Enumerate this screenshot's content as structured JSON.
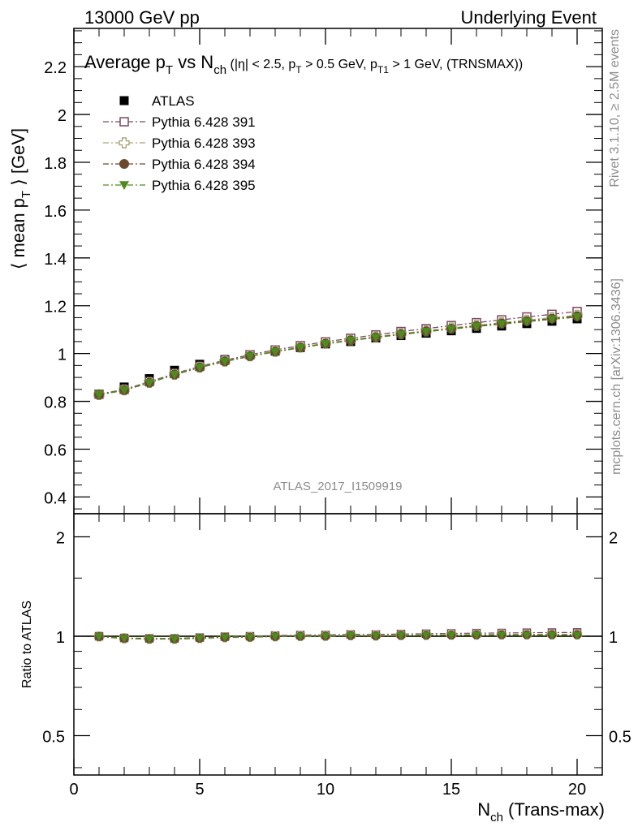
{
  "header": {
    "left": "13000 GeV pp",
    "right": "Underlying Event"
  },
  "side_labels": {
    "rivet": "Rivet 3.1.10, ≥ 2.5M events",
    "mcplots": "mcplots.cern.ch [arXiv:1306.3436]"
  },
  "watermark": "ATLAS_2017_I1509919",
  "chart_data": [
    {
      "type": "scatter",
      "title": "Average p_T vs N_ch (|η| < 2.5, p_T > 0.5 GeV, p_T1 > 1 GeV, (TRNSMAX))",
      "title_parts": {
        "main": "Average p",
        "sub1": "T",
        "vs": " vs N",
        "sub2": "ch",
        "rest_a": " (|η| < 2.5, p",
        "sub3": "T",
        "rest_b": " > 0.5 GeV, p",
        "sub4": "T1",
        "rest_c": " > 1 GeV, (TRNSMAX))"
      },
      "ylabel": "⟨ mean p_T ⟩ [GeV]",
      "ylabel_parts": {
        "a": "⟨ mean p",
        "sub": "T",
        "b": " ⟩ [GeV]"
      },
      "xlim": [
        0,
        21
      ],
      "ylim": [
        0.33,
        2.36
      ],
      "yticks": [
        0.4,
        0.6,
        0.8,
        1,
        1.2,
        1.4,
        1.6,
        1.8,
        2,
        2.2
      ],
      "ytick_labels": [
        "0.4",
        "0.6",
        "0.8",
        "1",
        "1.2",
        "1.4",
        "1.6",
        "1.8",
        "2",
        "2.2"
      ],
      "legend_position": "top-left",
      "x": [
        1,
        2,
        3,
        4,
        5,
        6,
        7,
        8,
        9,
        10,
        11,
        12,
        13,
        14,
        15,
        16,
        17,
        18,
        19,
        20
      ],
      "series": [
        {
          "name": "ATLAS",
          "color": "#000000",
          "marker": "square-filled",
          "line": "none",
          "values": [
            0.83,
            0.86,
            0.895,
            0.93,
            0.955,
            0.975,
            0.995,
            1.01,
            1.025,
            1.04,
            1.05,
            1.065,
            1.075,
            1.085,
            1.095,
            1.105,
            1.115,
            1.125,
            1.135,
            1.145
          ]
        },
        {
          "name": "Pythia 6.428 391",
          "color": "#7a4a62",
          "marker": "square-open",
          "line": "dashdot",
          "values": [
            0.83,
            0.85,
            0.882,
            0.916,
            0.946,
            0.972,
            0.995,
            1.015,
            1.033,
            1.049,
            1.064,
            1.078,
            1.092,
            1.104,
            1.117,
            1.129,
            1.141,
            1.153,
            1.164,
            1.176
          ]
        },
        {
          "name": "Pythia 6.428 393",
          "color": "#a8a878",
          "marker": "cross-open",
          "line": "dashdot",
          "values": [
            0.828,
            0.848,
            0.879,
            0.913,
            0.943,
            0.968,
            0.99,
            1.009,
            1.027,
            1.043,
            1.057,
            1.07,
            1.083,
            1.095,
            1.107,
            1.118,
            1.129,
            1.14,
            1.15,
            1.16
          ]
        },
        {
          "name": "Pythia 6.428 394",
          "color": "#6a4a2e",
          "marker": "circle-filled",
          "line": "dashdot",
          "values": [
            0.828,
            0.847,
            0.878,
            0.912,
            0.942,
            0.967,
            0.989,
            1.008,
            1.025,
            1.041,
            1.055,
            1.068,
            1.081,
            1.093,
            1.104,
            1.115,
            1.126,
            1.136,
            1.146,
            1.156
          ]
        },
        {
          "name": "Pythia 6.428 395",
          "color": "#4e8a1e",
          "marker": "triangle-down-filled",
          "line": "dashdot",
          "values": [
            0.827,
            0.846,
            0.877,
            0.911,
            0.941,
            0.966,
            0.988,
            1.007,
            1.024,
            1.04,
            1.054,
            1.067,
            1.079,
            1.091,
            1.102,
            1.113,
            1.123,
            1.133,
            1.143,
            1.152
          ]
        }
      ]
    },
    {
      "type": "scatter",
      "title": "",
      "ylabel": "Ratio to ATLAS",
      "xlabel": "N_ch (Trans-max)",
      "xlabel_parts": {
        "a": "N",
        "sub": "ch",
        "b": " (Trans-max)"
      },
      "xlim": [
        0,
        21
      ],
      "ylim": [
        0.38,
        2.35
      ],
      "log_y": true,
      "xticks": [
        0,
        5,
        10,
        15,
        20
      ],
      "xtick_labels": [
        "0",
        "5",
        "10",
        "15",
        "20"
      ],
      "yticks": [
        0.5,
        1,
        2
      ],
      "ytick_labels": [
        "0.5",
        "1",
        "2"
      ],
      "reference_band_color": "#d6f58a",
      "x": [
        1,
        2,
        3,
        4,
        5,
        6,
        7,
        8,
        9,
        10,
        11,
        12,
        13,
        14,
        15,
        16,
        17,
        18,
        19,
        20
      ],
      "series": [
        {
          "name": "Pythia 6.428 391",
          "color": "#7a4a62",
          "marker": "square-open",
          "values": [
            1.0,
            0.988,
            0.985,
            0.985,
            0.991,
            0.997,
            1.0,
            1.005,
            1.008,
            1.009,
            1.013,
            1.012,
            1.016,
            1.018,
            1.02,
            1.022,
            1.023,
            1.025,
            1.026,
            1.027
          ]
        },
        {
          "name": "Pythia 6.428 393",
          "color": "#a8a878",
          "marker": "cross-open",
          "values": [
            0.998,
            0.986,
            0.982,
            0.982,
            0.987,
            0.993,
            0.995,
            0.999,
            1.002,
            1.003,
            1.007,
            1.005,
            1.008,
            1.009,
            1.011,
            1.012,
            1.013,
            1.013,
            1.013,
            1.013
          ]
        },
        {
          "name": "Pythia 6.428 394",
          "color": "#6a4a2e",
          "marker": "circle-filled",
          "values": [
            0.997,
            0.985,
            0.981,
            0.981,
            0.986,
            0.992,
            0.994,
            0.998,
            1.0,
            1.001,
            1.005,
            1.003,
            1.006,
            1.007,
            1.008,
            1.009,
            1.01,
            1.01,
            1.01,
            1.01
          ]
        },
        {
          "name": "Pythia 6.428 395",
          "color": "#4e8a1e",
          "marker": "triangle-down-filled",
          "values": [
            0.996,
            0.984,
            0.98,
            0.98,
            0.985,
            0.991,
            0.993,
            0.997,
            0.999,
            1.0,
            1.004,
            1.002,
            1.004,
            1.006,
            1.006,
            1.007,
            1.007,
            1.007,
            1.007,
            1.006
          ]
        }
      ]
    }
  ]
}
